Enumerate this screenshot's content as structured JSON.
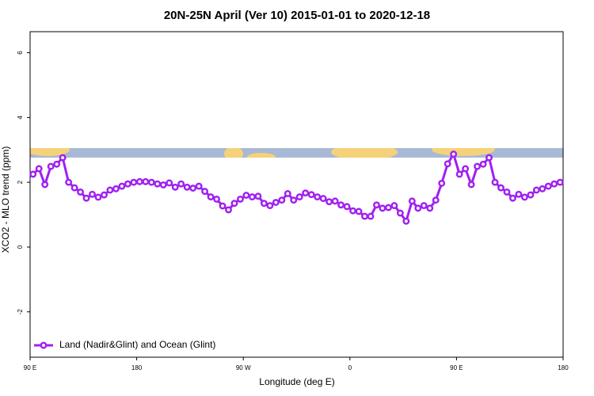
{
  "chart_data": {
    "type": "line",
    "title": "20N-25N April (Ver 10)   2015-01-01 to 2020-12-18",
    "x_label": "Longitude (deg E)",
    "y_label": "XCO2 - MLO trend (ppm)",
    "xlim": [
      90,
      540
    ],
    "ylim": [
      -3.4,
      6.65
    ],
    "xticks": [
      {
        "value": 90,
        "label": "90 E"
      },
      {
        "value": 180,
        "label": "180"
      },
      {
        "value": 270,
        "label": "90 W"
      },
      {
        "value": 360,
        "label": "0"
      },
      {
        "value": 450,
        "label": "90 E"
      },
      {
        "value": 540,
        "label": "180"
      }
    ],
    "yticks": [
      -2,
      0,
      2,
      4,
      6
    ],
    "legend_position": "bottom-left",
    "x": [
      92.5,
      97.5,
      102.5,
      107.5,
      112.5,
      117.5,
      122.5,
      127.5,
      132.5,
      137.5,
      142.5,
      147.5,
      152.5,
      157.5,
      162.5,
      167.5,
      172.5,
      177.5,
      182.5,
      187.5,
      192.5,
      197.5,
      202.5,
      207.5,
      212.5,
      217.5,
      222.5,
      227.5,
      232.5,
      237.5,
      242.5,
      247.5,
      252.5,
      257.5,
      262.5,
      267.5,
      272.5,
      277.5,
      282.5,
      287.5,
      292.5,
      297.5,
      302.5,
      307.5,
      312.5,
      317.5,
      322.5,
      327.5,
      332.5,
      337.5,
      342.5,
      347.5,
      352.5,
      357.5,
      362.5,
      367.5,
      372.5,
      377.5,
      382.5,
      387.5,
      392.5,
      397.5,
      402.5,
      407.5,
      412.5,
      417.5,
      422.5,
      427.5,
      432.5,
      437.5,
      442.5,
      447.5,
      452.5,
      457.5,
      462.5,
      467.5,
      472.5,
      477.5,
      482.5,
      487.5,
      492.5,
      497.5,
      502.5,
      507.5,
      512.5,
      517.5,
      522.5,
      527.5,
      532.5,
      537.5
    ],
    "series": [
      {
        "name": "Land (Nadir&Glint) and Ocean (Glint)",
        "color": "#a020f0",
        "values": [
          2.25,
          2.42,
          1.93,
          2.49,
          2.56,
          2.76,
          2.0,
          1.83,
          1.7,
          1.51,
          1.63,
          1.54,
          1.61,
          1.76,
          1.8,
          1.88,
          1.95,
          2.0,
          2.02,
          2.02,
          2.0,
          1.95,
          1.92,
          1.98,
          1.85,
          1.95,
          1.85,
          1.82,
          1.88,
          1.72,
          1.55,
          1.48,
          1.27,
          1.15,
          1.35,
          1.48,
          1.6,
          1.55,
          1.57,
          1.35,
          1.28,
          1.38,
          1.45,
          1.65,
          1.45,
          1.55,
          1.67,
          1.62,
          1.55,
          1.5,
          1.4,
          1.42,
          1.3,
          1.25,
          1.12,
          1.1,
          0.95,
          0.95,
          1.3,
          1.2,
          1.22,
          1.28,
          1.05,
          0.8,
          1.42,
          1.2,
          1.28,
          1.2,
          1.45,
          1.97,
          2.57,
          2.87,
          2.25,
          2.42,
          1.93,
          2.49,
          2.56,
          2.76,
          2.0,
          1.83,
          1.7,
          1.51,
          1.63,
          1.54,
          1.61,
          1.76,
          1.8,
          1.88,
          1.95,
          2.0
        ]
      }
    ]
  }
}
